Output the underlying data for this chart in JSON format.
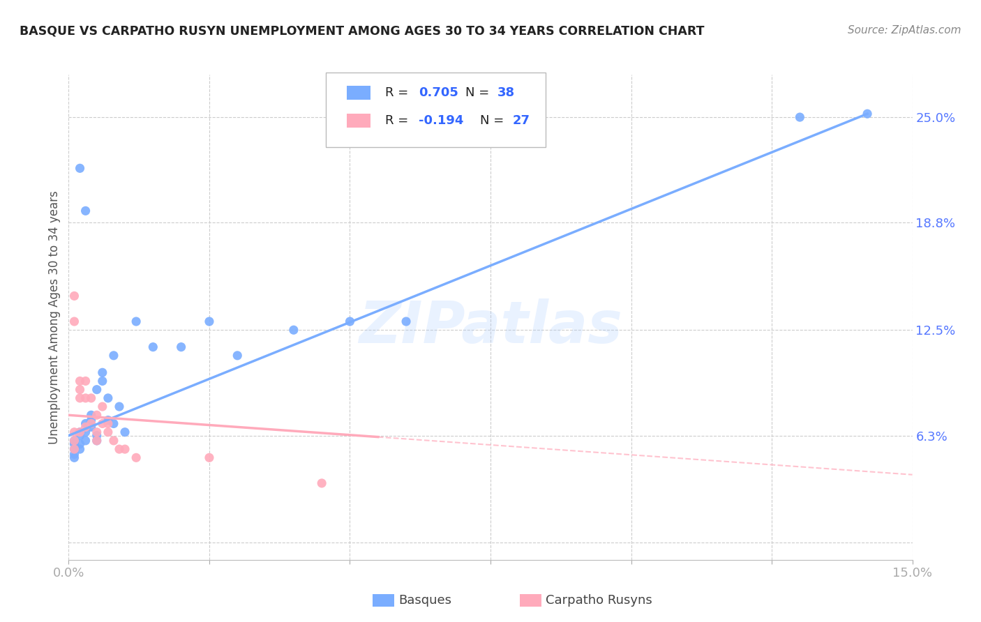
{
  "title": "BASQUE VS CARPATHO RUSYN UNEMPLOYMENT AMONG AGES 30 TO 34 YEARS CORRELATION CHART",
  "source": "Source: ZipAtlas.com",
  "ylabel": "Unemployment Among Ages 30 to 34 years",
  "xlim": [
    0.0,
    0.15
  ],
  "ylim": [
    -0.01,
    0.275
  ],
  "ytick_labels_right": [
    "6.3%",
    "12.5%",
    "18.8%",
    "25.0%"
  ],
  "ytick_vals_right": [
    0.063,
    0.125,
    0.188,
    0.25
  ],
  "watermark": "ZIPatlas",
  "blue_color": "#7aadff",
  "pink_color": "#ffaabb",
  "basque_R": 0.705,
  "basque_N": 38,
  "rusyn_R": -0.194,
  "rusyn_N": 27,
  "grid_color": "#cccccc",
  "bg_color": "#ffffff",
  "title_color": "#222222",
  "axis_label_color": "#5577ff",
  "legend_val_color": "#3366ff"
}
